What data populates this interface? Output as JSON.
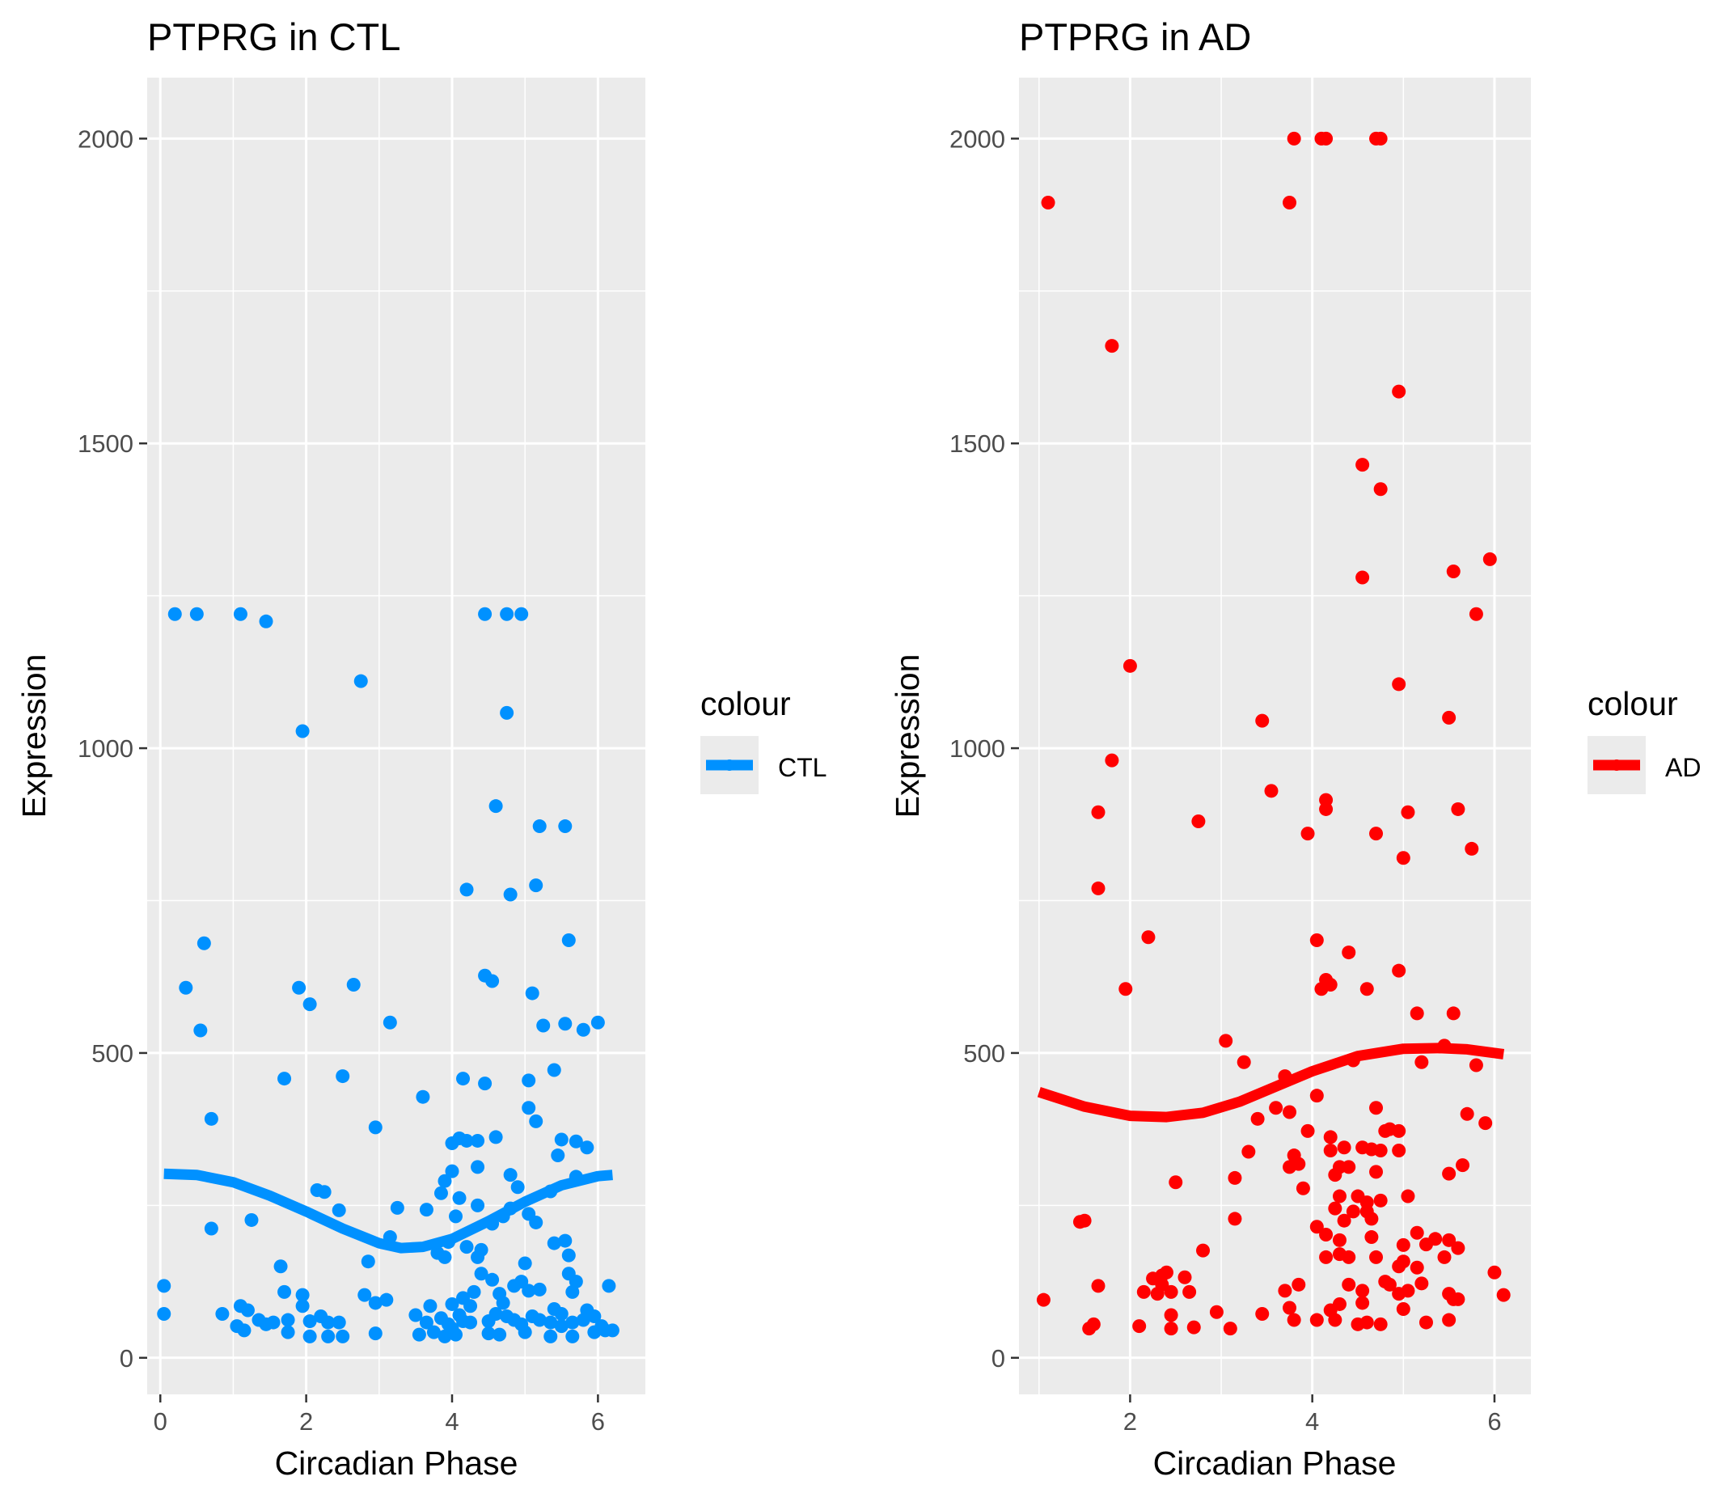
{
  "chart_data": [
    {
      "type": "scatter",
      "title": "PTPRG in CTL",
      "xlabel": "Circadian Phase",
      "ylabel": "Expression",
      "x_ticks": [
        0,
        2,
        4,
        6
      ],
      "x_tick_labels": [
        "0",
        "2",
        "4",
        "6"
      ],
      "y_ticks": [
        0,
        500,
        1000,
        1500,
        2000
      ],
      "y_tick_labels": [
        "0",
        "500",
        "1000",
        "1500",
        "2000"
      ],
      "xlim": [
        -0.18,
        6.65
      ],
      "ylim": [
        -60,
        2100
      ],
      "grid": true,
      "legend": {
        "title": "colour",
        "entries": [
          "CTL"
        ],
        "position": "right"
      },
      "color": "#0091FF",
      "points": [
        [
          0.05,
          118
        ],
        [
          0.05,
          72
        ],
        [
          0.2,
          1220
        ],
        [
          0.5,
          1220
        ],
        [
          1.1,
          1220
        ],
        [
          1.45,
          1208
        ],
        [
          2.75,
          1110
        ],
        [
          1.95,
          1028
        ],
        [
          4.45,
          1220
        ],
        [
          4.75,
          1220
        ],
        [
          4.95,
          1220
        ],
        [
          4.75,
          1058
        ],
        [
          4.6,
          905
        ],
        [
          5.2,
          872
        ],
        [
          5.55,
          872
        ],
        [
          5.15,
          775
        ],
        [
          4.2,
          768
        ],
        [
          4.8,
          760
        ],
        [
          5.6,
          685
        ],
        [
          0.6,
          680
        ],
        [
          0.35,
          607
        ],
        [
          1.9,
          607
        ],
        [
          2.65,
          612
        ],
        [
          4.45,
          627
        ],
        [
          4.55,
          618
        ],
        [
          5.1,
          598
        ],
        [
          2.05,
          580
        ],
        [
          0.55,
          537
        ],
        [
          3.15,
          550
        ],
        [
          5.25,
          545
        ],
        [
          5.55,
          548
        ],
        [
          5.8,
          538
        ],
        [
          6.0,
          550
        ],
        [
          5.4,
          472
        ],
        [
          1.7,
          458
        ],
        [
          2.5,
          462
        ],
        [
          4.15,
          458
        ],
        [
          4.45,
          450
        ],
        [
          5.05,
          455
        ],
        [
          3.6,
          428
        ],
        [
          0.7,
          392
        ],
        [
          2.95,
          378
        ],
        [
          5.05,
          410
        ],
        [
          5.15,
          388
        ],
        [
          4.0,
          352
        ],
        [
          4.1,
          360
        ],
        [
          4.2,
          356
        ],
        [
          4.35,
          356
        ],
        [
          4.6,
          362
        ],
        [
          5.5,
          358
        ],
        [
          5.7,
          355
        ],
        [
          5.85,
          345
        ],
        [
          5.45,
          332
        ],
        [
          4.35,
          313
        ],
        [
          4.0,
          306
        ],
        [
          3.9,
          290
        ],
        [
          4.8,
          300
        ],
        [
          4.9,
          280
        ],
        [
          5.7,
          297
        ],
        [
          5.35,
          273
        ],
        [
          2.15,
          275
        ],
        [
          2.25,
          272
        ],
        [
          3.85,
          270
        ],
        [
          4.1,
          262
        ],
        [
          4.35,
          250
        ],
        [
          2.45,
          242
        ],
        [
          3.25,
          246
        ],
        [
          3.65,
          243
        ],
        [
          4.05,
          232
        ],
        [
          4.8,
          245
        ],
        [
          4.7,
          232
        ],
        [
          4.55,
          220
        ],
        [
          5.05,
          236
        ],
        [
          5.15,
          222
        ],
        [
          1.25,
          226
        ],
        [
          0.7,
          212
        ],
        [
          3.15,
          198
        ],
        [
          3.95,
          190
        ],
        [
          4.2,
          182
        ],
        [
          4.4,
          177
        ],
        [
          5.4,
          188
        ],
        [
          5.55,
          192
        ],
        [
          5.6,
          168
        ],
        [
          3.8,
          172
        ],
        [
          3.9,
          165
        ],
        [
          4.35,
          165
        ],
        [
          4.4,
          138
        ],
        [
          5.0,
          155
        ],
        [
          1.65,
          150
        ],
        [
          2.85,
          158
        ],
        [
          4.55,
          128
        ],
        [
          4.85,
          118
        ],
        [
          4.95,
          125
        ],
        [
          5.05,
          110
        ],
        [
          5.2,
          112
        ],
        [
          5.6,
          138
        ],
        [
          5.7,
          125
        ],
        [
          5.65,
          108
        ],
        [
          1.7,
          108
        ],
        [
          1.95,
          103
        ],
        [
          2.8,
          103
        ],
        [
          3.1,
          95
        ],
        [
          2.95,
          90
        ],
        [
          4.3,
          108
        ],
        [
          4.15,
          98
        ],
        [
          4.65,
          105
        ],
        [
          4.7,
          90
        ],
        [
          5.4,
          80
        ],
        [
          5.5,
          72
        ],
        [
          5.85,
          78
        ],
        [
          5.95,
          68
        ],
        [
          6.15,
          118
        ],
        [
          1.1,
          85
        ],
        [
          1.2,
          78
        ],
        [
          1.95,
          85
        ],
        [
          2.2,
          68
        ],
        [
          2.05,
          60
        ],
        [
          2.3,
          58
        ],
        [
          1.35,
          62
        ],
        [
          1.55,
          58
        ],
        [
          1.75,
          62
        ],
        [
          1.05,
          52
        ],
        [
          1.15,
          45
        ],
        [
          1.45,
          55
        ],
        [
          2.45,
          58
        ],
        [
          0.85,
          72
        ],
        [
          3.5,
          70
        ],
        [
          3.65,
          58
        ],
        [
          3.85,
          65
        ],
        [
          3.95,
          55
        ],
        [
          4.0,
          48
        ],
        [
          4.1,
          70
        ],
        [
          4.15,
          60
        ],
        [
          4.25,
          58
        ],
        [
          4.5,
          60
        ],
        [
          4.6,
          72
        ],
        [
          4.75,
          68
        ],
        [
          4.85,
          62
        ],
        [
          4.95,
          55
        ],
        [
          5.1,
          68
        ],
        [
          5.2,
          62
        ],
        [
          5.35,
          58
        ],
        [
          5.5,
          52
        ],
        [
          5.65,
          58
        ],
        [
          5.8,
          62
        ],
        [
          6.05,
          52
        ],
        [
          6.2,
          45
        ],
        [
          1.75,
          42
        ],
        [
          2.05,
          35
        ],
        [
          2.3,
          35
        ],
        [
          2.5,
          35
        ],
        [
          2.95,
          40
        ],
        [
          3.55,
          38
        ],
        [
          3.75,
          42
        ],
        [
          3.9,
          35
        ],
        [
          4.05,
          38
        ],
        [
          4.5,
          40
        ],
        [
          4.65,
          38
        ],
        [
          5.0,
          42
        ],
        [
          5.35,
          35
        ],
        [
          5.65,
          35
        ],
        [
          5.95,
          42
        ],
        [
          6.1,
          45
        ],
        [
          4.0,
          88
        ],
        [
          3.7,
          85
        ],
        [
          4.25,
          85
        ]
      ],
      "trend_color": "#0091FF",
      "trend": {
        "x": [
          0.05,
          0.5,
          1.0,
          1.5,
          2.0,
          2.5,
          3.0,
          3.3,
          3.6,
          4.0,
          4.5,
          5.0,
          5.5,
          6.0,
          6.2
        ],
        "y": [
          302,
          300,
          288,
          266,
          240,
          212,
          188,
          180,
          182,
          195,
          224,
          256,
          283,
          298,
          300
        ]
      }
    },
    {
      "type": "scatter",
      "title": "PTPRG in AD",
      "xlabel": "Circadian Phase",
      "ylabel": "Expression",
      "x_ticks": [
        2,
        4,
        6
      ],
      "x_tick_labels": [
        "2",
        "4",
        "6"
      ],
      "y_ticks": [
        0,
        500,
        1000,
        1500,
        2000
      ],
      "y_tick_labels": [
        "0",
        "500",
        "1000",
        "1500",
        "2000"
      ],
      "xlim": [
        0.78,
        6.4
      ],
      "ylim": [
        -60,
        2100
      ],
      "grid": true,
      "legend": {
        "title": "colour",
        "entries": [
          "AD"
        ],
        "position": "right"
      },
      "color": "#FF0000",
      "points": [
        [
          1.1,
          1895
        ],
        [
          3.8,
          2000
        ],
        [
          4.1,
          2000
        ],
        [
          4.15,
          2000
        ],
        [
          4.7,
          2000
        ],
        [
          4.75,
          2000
        ],
        [
          3.75,
          1895
        ],
        [
          1.8,
          1660
        ],
        [
          4.95,
          1585
        ],
        [
          4.55,
          1465
        ],
        [
          4.75,
          1425
        ],
        [
          4.55,
          1280
        ],
        [
          5.55,
          1290
        ],
        [
          5.95,
          1310
        ],
        [
          5.8,
          1220
        ],
        [
          2.0,
          1135
        ],
        [
          4.95,
          1105
        ],
        [
          3.45,
          1045
        ],
        [
          5.5,
          1050
        ],
        [
          1.8,
          980
        ],
        [
          3.55,
          930
        ],
        [
          4.15,
          915
        ],
        [
          4.15,
          900
        ],
        [
          1.65,
          895
        ],
        [
          5.05,
          895
        ],
        [
          5.6,
          900
        ],
        [
          2.75,
          880
        ],
        [
          3.95,
          860
        ],
        [
          4.7,
          860
        ],
        [
          5.75,
          835
        ],
        [
          5.0,
          820
        ],
        [
          1.65,
          770
        ],
        [
          2.2,
          690
        ],
        [
          4.05,
          685
        ],
        [
          4.4,
          665
        ],
        [
          4.95,
          635
        ],
        [
          4.15,
          620
        ],
        [
          4.2,
          612
        ],
        [
          4.1,
          605
        ],
        [
          4.6,
          605
        ],
        [
          1.95,
          605
        ],
        [
          5.15,
          565
        ],
        [
          5.55,
          565
        ],
        [
          3.05,
          520
        ],
        [
          5.45,
          512
        ],
        [
          3.25,
          485
        ],
        [
          4.45,
          488
        ],
        [
          5.2,
          485
        ],
        [
          5.8,
          480
        ],
        [
          3.7,
          462
        ],
        [
          4.05,
          430
        ],
        [
          3.6,
          410
        ],
        [
          3.75,
          403
        ],
        [
          4.7,
          410
        ],
        [
          5.7,
          400
        ],
        [
          3.4,
          392
        ],
        [
          5.9,
          385
        ],
        [
          3.95,
          372
        ],
        [
          4.2,
          362
        ],
        [
          4.8,
          372
        ],
        [
          4.85,
          375
        ],
        [
          4.95,
          372
        ],
        [
          4.2,
          340
        ],
        [
          4.35,
          345
        ],
        [
          4.55,
          345
        ],
        [
          4.65,
          342
        ],
        [
          4.75,
          340
        ],
        [
          4.95,
          340
        ],
        [
          3.3,
          338
        ],
        [
          3.8,
          332
        ],
        [
          3.75,
          313
        ],
        [
          3.85,
          318
        ],
        [
          4.3,
          313
        ],
        [
          4.4,
          313
        ],
        [
          4.25,
          300
        ],
        [
          4.7,
          305
        ],
        [
          5.5,
          302
        ],
        [
          5.65,
          316
        ],
        [
          3.15,
          295
        ],
        [
          2.5,
          288
        ],
        [
          3.9,
          278
        ],
        [
          4.3,
          265
        ],
        [
          4.5,
          265
        ],
        [
          4.75,
          258
        ],
        [
          4.6,
          255
        ],
        [
          5.05,
          265
        ],
        [
          4.25,
          245
        ],
        [
          4.45,
          240
        ],
        [
          4.6,
          240
        ],
        [
          4.35,
          225
        ],
        [
          4.65,
          228
        ],
        [
          3.15,
          228
        ],
        [
          1.5,
          225
        ],
        [
          1.45,
          223
        ],
        [
          4.05,
          215
        ],
        [
          4.15,
          202
        ],
        [
          4.3,
          193
        ],
        [
          4.65,
          198
        ],
        [
          5.15,
          205
        ],
        [
          5.35,
          195
        ],
        [
          5.5,
          193
        ],
        [
          5.0,
          185
        ],
        [
          5.25,
          186
        ],
        [
          5.6,
          180
        ],
        [
          2.8,
          176
        ],
        [
          4.3,
          170
        ],
        [
          4.4,
          165
        ],
        [
          4.15,
          165
        ],
        [
          4.7,
          165
        ],
        [
          5.0,
          158
        ],
        [
          4.95,
          150
        ],
        [
          5.15,
          148
        ],
        [
          5.45,
          165
        ],
        [
          6.0,
          140
        ],
        [
          2.25,
          130
        ],
        [
          2.35,
          135
        ],
        [
          2.4,
          140
        ],
        [
          2.35,
          120
        ],
        [
          2.6,
          132
        ],
        [
          3.85,
          120
        ],
        [
          4.4,
          120
        ],
        [
          4.55,
          110
        ],
        [
          4.8,
          125
        ],
        [
          4.85,
          120
        ],
        [
          5.2,
          122
        ],
        [
          1.65,
          118
        ],
        [
          2.15,
          108
        ],
        [
          2.3,
          105
        ],
        [
          2.45,
          108
        ],
        [
          2.65,
          108
        ],
        [
          3.7,
          110
        ],
        [
          4.95,
          105
        ],
        [
          5.05,
          110
        ],
        [
          5.5,
          105
        ],
        [
          5.55,
          96
        ],
        [
          5.6,
          96
        ],
        [
          6.1,
          103
        ],
        [
          1.05,
          95
        ],
        [
          3.75,
          82
        ],
        [
          4.2,
          78
        ],
        [
          4.3,
          88
        ],
        [
          4.55,
          90
        ],
        [
          5.0,
          80
        ],
        [
          2.45,
          70
        ],
        [
          2.95,
          75
        ],
        [
          3.45,
          72
        ],
        [
          3.8,
          62
        ],
        [
          4.05,
          62
        ],
        [
          4.25,
          62
        ],
        [
          4.5,
          55
        ],
        [
          4.6,
          58
        ],
        [
          4.75,
          55
        ],
        [
          5.25,
          58
        ],
        [
          5.5,
          62
        ],
        [
          1.55,
          48
        ],
        [
          1.6,
          55
        ],
        [
          2.1,
          52
        ],
        [
          2.45,
          48
        ],
        [
          2.7,
          50
        ],
        [
          3.1,
          48
        ]
      ],
      "trend_color": "#FF0000",
      "trend": {
        "x": [
          1.0,
          1.5,
          2.0,
          2.4,
          2.8,
          3.2,
          3.6,
          4.0,
          4.5,
          5.0,
          5.4,
          5.7,
          6.1
        ],
        "y": [
          436,
          412,
          397,
          395,
          402,
          420,
          445,
          470,
          495,
          507,
          508,
          506,
          498
        ]
      }
    }
  ]
}
